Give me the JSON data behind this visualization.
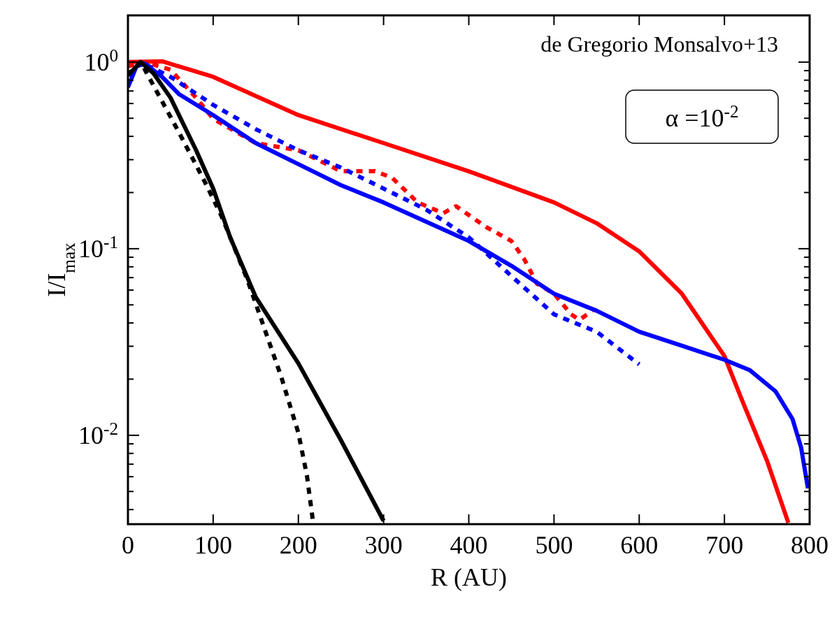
{
  "chart_data": {
    "type": "line",
    "xlabel": "R (AU)",
    "ylabel": "I/I$_{max}$",
    "log": "y",
    "xlim": [
      0,
      800
    ],
    "xticks": [
      0,
      100,
      200,
      300,
      400,
      500,
      600,
      700,
      800
    ],
    "ylim": [
      0.00334,
      1.78
    ],
    "yticks": [
      {
        "value": 0.004,
        "label": null
      },
      {
        "value": 0.005,
        "label": null
      },
      {
        "value": 0.006,
        "label": null
      },
      {
        "value": 0.007,
        "label": null
      },
      {
        "value": 0.008,
        "label": null
      },
      {
        "value": 0.009,
        "label": null
      },
      {
        "value": 0.01,
        "label": "10$^{-2}$"
      },
      {
        "value": 0.02,
        "label": null
      },
      {
        "value": 0.03,
        "label": null
      },
      {
        "value": 0.04,
        "label": null
      },
      {
        "value": 0.05,
        "label": null
      },
      {
        "value": 0.06,
        "label": null
      },
      {
        "value": 0.07,
        "label": null
      },
      {
        "value": 0.08,
        "label": null
      },
      {
        "value": 0.09,
        "label": null
      },
      {
        "value": 0.1,
        "label": "10$^{-1}$"
      },
      {
        "value": 0.2,
        "label": null
      },
      {
        "value": 0.3,
        "label": null
      },
      {
        "value": 0.4,
        "label": null
      },
      {
        "value": 0.5,
        "label": null
      },
      {
        "value": 0.6,
        "label": null
      },
      {
        "value": 0.7,
        "label": null
      },
      {
        "value": 0.8,
        "label": null
      },
      {
        "value": 0.9,
        "label": null
      },
      {
        "value": 1,
        "label": "10$^{0}$"
      }
    ],
    "annotations": [
      "de Gregorio Monsalvo+13",
      "α =10$^{-2}$"
    ],
    "series": [
      {
        "color": "#ff0000",
        "line_style": "solid",
        "x": [
          0,
          40,
          100,
          200,
          300,
          400,
          500,
          550,
          600,
          650,
          700,
          720,
          750,
          775
        ],
        "values": [
          1.0,
          1.01,
          0.834,
          0.52,
          0.368,
          0.26,
          0.177,
          0.137,
          0.0967,
          0.0574,
          0.0266,
          0.0157,
          0.0073,
          0.0034
        ]
      },
      {
        "color": "#ff0000",
        "line_style": "dotted",
        "x": [
          0,
          20,
          50,
          80,
          100,
          150,
          200,
          250,
          290,
          310,
          340,
          370,
          385,
          420,
          450,
          465,
          480,
          500,
          520,
          530,
          545
        ],
        "values": [
          0.95,
          1.0,
          0.91,
          0.644,
          0.497,
          0.368,
          0.337,
          0.26,
          0.26,
          0.24,
          0.177,
          0.155,
          0.169,
          0.131,
          0.11,
          0.088,
          0.065,
          0.0574,
          0.0445,
          0.0416,
          0.0465
        ]
      },
      {
        "color": "#0000ff",
        "line_style": "solid",
        "x": [
          0,
          10,
          20,
          40,
          60,
          100,
          150,
          200,
          250,
          300,
          400,
          450,
          500,
          550,
          600,
          650,
          700,
          730,
          760,
          780,
          790,
          798
        ],
        "values": [
          0.733,
          0.95,
          0.98,
          0.834,
          0.673,
          0.52,
          0.368,
          0.284,
          0.219,
          0.177,
          0.11,
          0.081,
          0.0574,
          0.0465,
          0.0359,
          0.0302,
          0.0254,
          0.0223,
          0.0172,
          0.0122,
          0.0086,
          0.0052
        ]
      },
      {
        "color": "#0000ff",
        "line_style": "dotted",
        "x": [
          0,
          15,
          50,
          100,
          150,
          200,
          250,
          300,
          350,
          400,
          450,
          500,
          520,
          550,
          600
        ],
        "values": [
          0.85,
          1.0,
          0.834,
          0.59,
          0.437,
          0.337,
          0.272,
          0.21,
          0.162,
          0.115,
          0.0714,
          0.0445,
          0.0408,
          0.0359,
          0.024
        ]
      },
      {
        "color": "#000000",
        "line_style": "solid",
        "x": [
          0,
          15,
          30,
          50,
          80,
          100,
          120,
          150,
          200,
          250,
          300
        ],
        "values": [
          0.85,
          1.0,
          0.87,
          0.644,
          0.337,
          0.21,
          0.115,
          0.055,
          0.0243,
          0.0094,
          0.00348
        ]
      },
      {
        "color": "#000000",
        "line_style": "dotted",
        "x": [
          0,
          15,
          40,
          60,
          90,
          110,
          140,
          160,
          180,
          200,
          210,
          217
        ],
        "values": [
          0.85,
          1.0,
          0.617,
          0.419,
          0.229,
          0.149,
          0.0685,
          0.0375,
          0.0205,
          0.0103,
          0.0061,
          0.0035
        ]
      }
    ]
  }
}
